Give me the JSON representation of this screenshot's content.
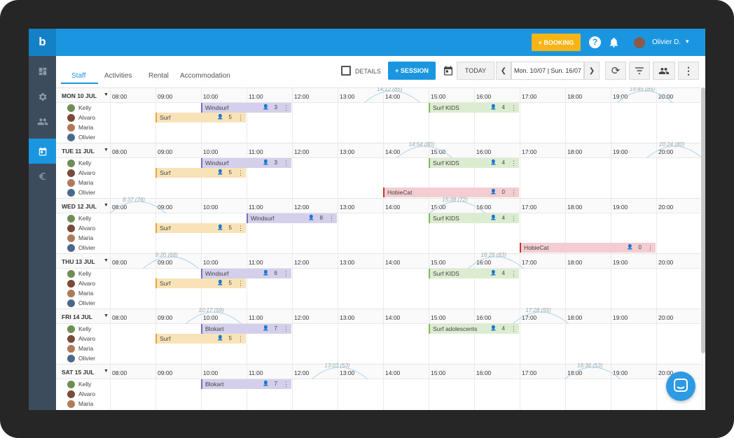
{
  "app": {
    "logo": "b",
    "booking_label": "+ BOOKING",
    "help_label": "?",
    "user_name": "Olivier D."
  },
  "tabs": [
    "Staff",
    "Activities",
    "Rental",
    "Accommodation"
  ],
  "toolbar": {
    "details_label": "DETAILS",
    "session_label": "+ SESSION",
    "today_label": "TODAY",
    "date_range": "Mon. 10/07 | Sun. 16/07"
  },
  "hours": [
    "08:00",
    "09:00",
    "10:00",
    "11:00",
    "12:00",
    "13:00",
    "14:00",
    "15:00",
    "16:00",
    "17:00",
    "18:00",
    "19:00",
    "20:00"
  ],
  "staff": [
    {
      "name": "Kelly",
      "color": "#6f8e55"
    },
    {
      "name": "Alvaro",
      "color": "#7a4a3a"
    },
    {
      "name": "Maria",
      "color": "#b07a5a"
    },
    {
      "name": "Olivier",
      "color": "#4a6a8a"
    }
  ],
  "days": [
    {
      "label": "MON 10 JUL",
      "tides": [
        "14:12 (85)",
        "19:45 (85)"
      ],
      "events": [
        {
          "name": "Windsurf",
          "count": "3",
          "row": 0,
          "start": 10,
          "end": 12,
          "color": "purple"
        },
        {
          "name": "Surf",
          "count": "5",
          "row": 1,
          "start": 9,
          "end": 11,
          "color": "orange"
        },
        {
          "name": "Surf KIDS",
          "count": "4",
          "row": 0,
          "start": 15,
          "end": 17,
          "color": "green"
        }
      ]
    },
    {
      "label": "TUE 11 JUL",
      "tides": [
        "14:54 (80)",
        "20:24 (80)"
      ],
      "events": [
        {
          "name": "Windsurf",
          "count": "3",
          "row": 0,
          "start": 10,
          "end": 12,
          "color": "purple"
        },
        {
          "name": "Surf",
          "count": "5",
          "row": 1,
          "start": 9,
          "end": 11,
          "color": "orange"
        },
        {
          "name": "Surf KIDS",
          "count": "4",
          "row": 0,
          "start": 15,
          "end": 17,
          "color": "green"
        },
        {
          "name": "HobieCat",
          "count": "0",
          "row": 3,
          "start": 14,
          "end": 17,
          "color": "red"
        }
      ]
    },
    {
      "label": "WED 12 JUL",
      "tides": [
        "8:37 (76)",
        "15:38 (72)"
      ],
      "events": [
        {
          "name": "Windsurf",
          "count": "8",
          "row": 0,
          "start": 11,
          "end": 13,
          "color": "purple"
        },
        {
          "name": "Surf",
          "count": "5",
          "row": 1,
          "start": 9,
          "end": 11,
          "color": "orange"
        },
        {
          "name": "Surf KIDS",
          "count": "4",
          "row": 0,
          "start": 15,
          "end": 17,
          "color": "green"
        },
        {
          "name": "HobieCat",
          "count": "0",
          "row": 3,
          "start": 17,
          "end": 20,
          "color": "red"
        }
      ]
    },
    {
      "label": "THU 13 JUL",
      "tides": [
        "9:20 (68)",
        "16:29 (63)"
      ],
      "events": [
        {
          "name": "Windsurf",
          "count": "6",
          "row": 0,
          "start": 10,
          "end": 12,
          "color": "purple"
        },
        {
          "name": "Surf",
          "count": "5",
          "row": 1,
          "start": 9,
          "end": 11,
          "color": "orange"
        },
        {
          "name": "Surf KIDS",
          "count": "4",
          "row": 0,
          "start": 15,
          "end": 17,
          "color": "green"
        }
      ]
    },
    {
      "label": "FRI 14 JUL",
      "tides": [
        "10:17 (59)",
        "17:28 (55)"
      ],
      "events": [
        {
          "name": "Blokart",
          "count": "7",
          "row": 0,
          "start": 10,
          "end": 12,
          "color": "purple"
        },
        {
          "name": "Surf",
          "count": "5",
          "row": 1,
          "start": 9,
          "end": 11,
          "color": "orange"
        },
        {
          "name": "Surf adolescents",
          "count": "4",
          "row": 0,
          "start": 15,
          "end": 17,
          "color": "green"
        }
      ]
    },
    {
      "label": "SAT 15 JUL",
      "tides": [
        "13:03 (53)",
        "18:36 (53)"
      ],
      "events": [
        {
          "name": "Blokart",
          "count": "7",
          "row": 0,
          "start": 10,
          "end": 12,
          "color": "purple"
        }
      ]
    }
  ],
  "colors": {
    "purple": [
      "#d4d0eb",
      "#7a6cc0"
    ],
    "orange": [
      "#f8e3b8",
      "#e8a430"
    ],
    "green": [
      "#dcecd0",
      "#7fb860"
    ],
    "red": [
      "#f3cdd1",
      "#c0392b"
    ],
    "accent": "#1a96e0"
  }
}
